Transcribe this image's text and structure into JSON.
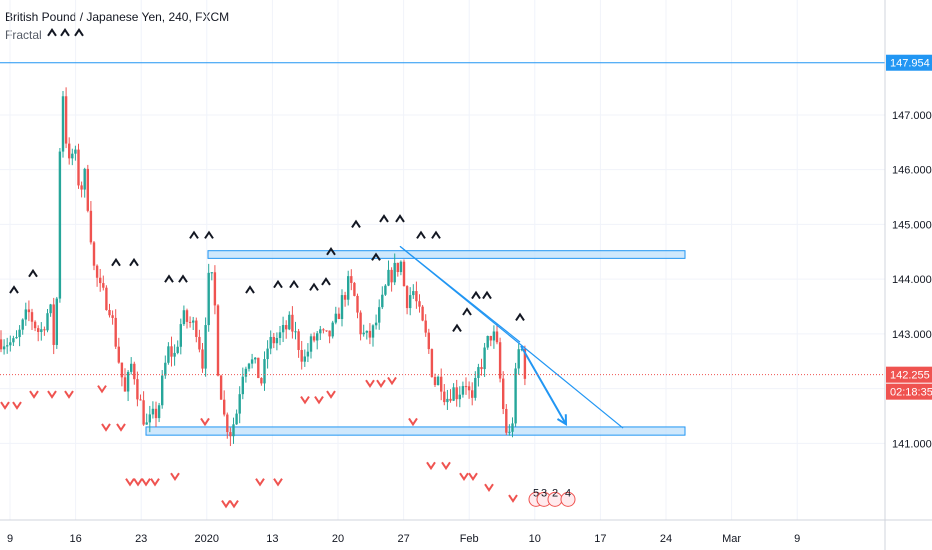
{
  "chart_data": {
    "type": "candlestick",
    "title": "British Pound / Japanese Yen, 240, FXCM",
    "indicator": "Fractal",
    "x_ticks": [
      "9",
      "16",
      "23",
      "2020",
      "13",
      "20",
      "27",
      "Feb",
      "10",
      "17",
      "24",
      "Mar",
      "9"
    ],
    "y_ticks": [
      "141.000",
      "142.000",
      "143.000",
      "144.000",
      "145.000",
      "146.000",
      "147.000"
    ],
    "ylim": [
      139.6,
      149.1
    ],
    "xlim": [
      0,
      932
    ],
    "grid": true,
    "resistance_level": {
      "value": 147.954,
      "label": "147.954",
      "color": "#2196f3"
    },
    "current_price": {
      "value": 142.255,
      "label": "142.255",
      "color": "#ef5350"
    },
    "countdown": {
      "label": "02:18:35",
      "color": "#ef5350"
    },
    "colors": {
      "up": "#26a69a",
      "down": "#ef5350",
      "drawing": "#2196f3",
      "zone_fill": "#bbdefb",
      "fractal": "#131722"
    },
    "price_path": [
      [
        0,
        142.9
      ],
      [
        15,
        142.8
      ],
      [
        28,
        143.4
      ],
      [
        40,
        143.0
      ],
      [
        50,
        143.5
      ],
      [
        54,
        142.8
      ],
      [
        58,
        144.0
      ],
      [
        61,
        147.8
      ],
      [
        64,
        147.2
      ],
      [
        68,
        146.0
      ],
      [
        74,
        146.4
      ],
      [
        80,
        145.6
      ],
      [
        85,
        145.9
      ],
      [
        90,
        145.0
      ],
      [
        94,
        144.2
      ],
      [
        100,
        143.8
      ],
      [
        110,
        143.5
      ],
      [
        118,
        142.6
      ],
      [
        125,
        141.9
      ],
      [
        132,
        142.5
      ],
      [
        138,
        141.9
      ],
      [
        146,
        141.3
      ],
      [
        150,
        141.4
      ],
      [
        158,
        141.6
      ],
      [
        163,
        142.2
      ],
      [
        168,
        142.7
      ],
      [
        175,
        142.6
      ],
      [
        182,
        143.3
      ],
      [
        190,
        143.2
      ],
      [
        197,
        143.1
      ],
      [
        203,
        142.4
      ],
      [
        207,
        143.8
      ],
      [
        210,
        144.1
      ],
      [
        214,
        143.8
      ],
      [
        218,
        142.4
      ],
      [
        224,
        141.5
      ],
      [
        230,
        141.2
      ],
      [
        236,
        141.5
      ],
      [
        242,
        142.3
      ],
      [
        248,
        142.6
      ],
      [
        255,
        142.4
      ],
      [
        262,
        142.1
      ],
      [
        268,
        142.8
      ],
      [
        275,
        142.9
      ],
      [
        282,
        143.0
      ],
      [
        290,
        143.2
      ],
      [
        297,
        142.9
      ],
      [
        304,
        142.5
      ],
      [
        310,
        142.8
      ],
      [
        318,
        143.0
      ],
      [
        326,
        142.9
      ],
      [
        334,
        143.1
      ],
      [
        342,
        143.6
      ],
      [
        348,
        143.9
      ],
      [
        353,
        143.8
      ],
      [
        360,
        143.1
      ],
      [
        366,
        142.9
      ],
      [
        372,
        143.0
      ],
      [
        380,
        143.4
      ],
      [
        388,
        144.0
      ],
      [
        396,
        144.2
      ],
      [
        401,
        144.3
      ],
      [
        406,
        143.6
      ],
      [
        413,
        143.8
      ],
      [
        420,
        143.3
      ],
      [
        428,
        142.8
      ],
      [
        434,
        142.1
      ],
      [
        440,
        142.2
      ],
      [
        446,
        141.8
      ],
      [
        452,
        142.0
      ],
      [
        458,
        141.9
      ],
      [
        465,
        142.2
      ],
      [
        472,
        141.7
      ],
      [
        478,
        142.3
      ],
      [
        484,
        142.6
      ],
      [
        490,
        143.0
      ],
      [
        496,
        142.9
      ],
      [
        501,
        142.0
      ],
      [
        505,
        141.3
      ],
      [
        509,
        141.1
      ],
      [
        513,
        141.5
      ],
      [
        517,
        142.6
      ],
      [
        521,
        142.8
      ],
      [
        525,
        142.3
      ]
    ],
    "fractals_up": [
      [
        52,
        148.5
      ],
      [
        65,
        148.5
      ],
      [
        79,
        148.5
      ],
      [
        14,
        143.8
      ],
      [
        33,
        144.1
      ],
      [
        116,
        144.3
      ],
      [
        134,
        144.3
      ],
      [
        169,
        144.0
      ],
      [
        183,
        144.0
      ],
      [
        194,
        144.8
      ],
      [
        209,
        144.8
      ],
      [
        250,
        143.8
      ],
      [
        278,
        143.9
      ],
      [
        294,
        143.9
      ],
      [
        314,
        143.85
      ],
      [
        326,
        143.95
      ],
      [
        331,
        144.5
      ],
      [
        356,
        145.0
      ],
      [
        376,
        144.4
      ],
      [
        384,
        145.1
      ],
      [
        400,
        145.1
      ],
      [
        421,
        144.8
      ],
      [
        436,
        144.8
      ],
      [
        457,
        143.1
      ],
      [
        467,
        143.4
      ],
      [
        476,
        143.7
      ],
      [
        487,
        143.7
      ],
      [
        520,
        143.3
      ]
    ],
    "fractals_down": [
      [
        5,
        141.7
      ],
      [
        17,
        141.7
      ],
      [
        34,
        141.9
      ],
      [
        52,
        141.9
      ],
      [
        69,
        141.9
      ],
      [
        102,
        142.0
      ],
      [
        106,
        141.3
      ],
      [
        121,
        141.3
      ],
      [
        130,
        140.3
      ],
      [
        138,
        140.3
      ],
      [
        146,
        140.3
      ],
      [
        155,
        140.3
      ],
      [
        175,
        140.4
      ],
      [
        205,
        141.4
      ],
      [
        226,
        139.9
      ],
      [
        234,
        139.9
      ],
      [
        260,
        140.3
      ],
      [
        278,
        140.3
      ],
      [
        305,
        141.8
      ],
      [
        319,
        141.8
      ],
      [
        331,
        141.9
      ],
      [
        370,
        142.1
      ],
      [
        381,
        142.1
      ],
      [
        392,
        142.15
      ],
      [
        413,
        141.4
      ],
      [
        431,
        140.6
      ],
      [
        446,
        140.6
      ],
      [
        464,
        140.4
      ],
      [
        473,
        140.4
      ],
      [
        489,
        140.2
      ],
      [
        513,
        140.0
      ]
    ],
    "zones": [
      {
        "x1": 208,
        "x2": 685,
        "top": 144.52,
        "bottom": 144.38
      },
      {
        "x1": 146,
        "x2": 685,
        "top": 141.3,
        "bottom": 141.15
      }
    ],
    "trendlines": [
      {
        "x1": 400,
        "y1": 144.6,
        "x2": 623,
        "y2": 141.28
      },
      {
        "x1": 400,
        "y1": 144.6,
        "x2": 520,
        "y2": 142.85
      }
    ],
    "projection_arrow": {
      "x1": 521,
      "y1": 142.78,
      "x2": 566,
      "y2": 141.35
    },
    "event_markers": [
      "5",
      "3",
      "2",
      "4"
    ]
  }
}
